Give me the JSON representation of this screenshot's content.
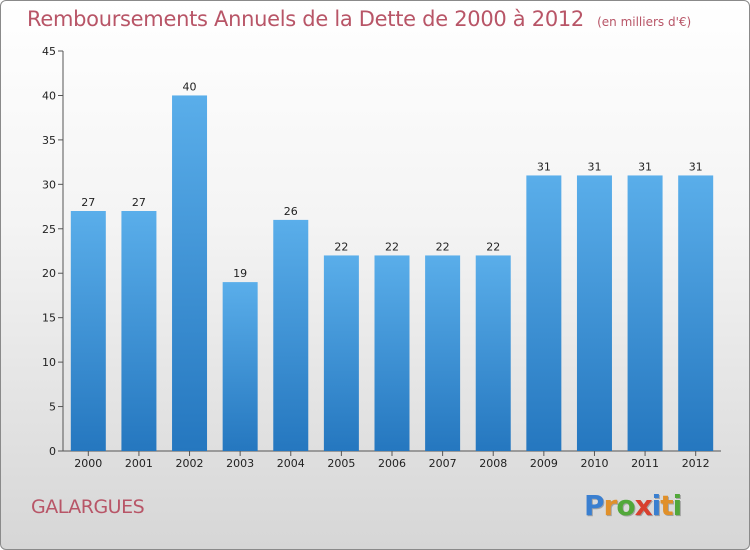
{
  "header": {
    "title": "Remboursements Annuels de la Dette de 2000 à 2012",
    "unit": "(en milliers d'€)"
  },
  "footer": {
    "commune": "GALARGUES",
    "logo_letters": [
      {
        "char": "P",
        "color": "#3a7fd0"
      },
      {
        "char": "r",
        "color": "#e0902a"
      },
      {
        "char": "o",
        "color": "#52a83a"
      },
      {
        "char": "x",
        "color": "#d8402f"
      },
      {
        "char": "i",
        "color": "#3a7fd0"
      },
      {
        "char": "t",
        "color": "#e0902a"
      },
      {
        "char": "i",
        "color": "#52a83a"
      }
    ]
  },
  "chart_data": {
    "type": "bar",
    "title": "Remboursements Annuels de la Dette de 2000 à 2012",
    "xlabel": "",
    "ylabel": "",
    "categories": [
      "2000",
      "2001",
      "2002",
      "2003",
      "2004",
      "2005",
      "2006",
      "2007",
      "2008",
      "2009",
      "2010",
      "2011",
      "2012"
    ],
    "values": [
      27,
      27,
      40,
      19,
      26,
      22,
      22,
      22,
      22,
      31,
      31,
      31,
      31
    ],
    "ylim": [
      0,
      45
    ],
    "yticks": [
      0,
      5,
      10,
      15,
      20,
      25,
      30,
      35,
      40,
      45
    ],
    "grid": false,
    "legend": "none",
    "bar_color": "#3f8fd6"
  }
}
